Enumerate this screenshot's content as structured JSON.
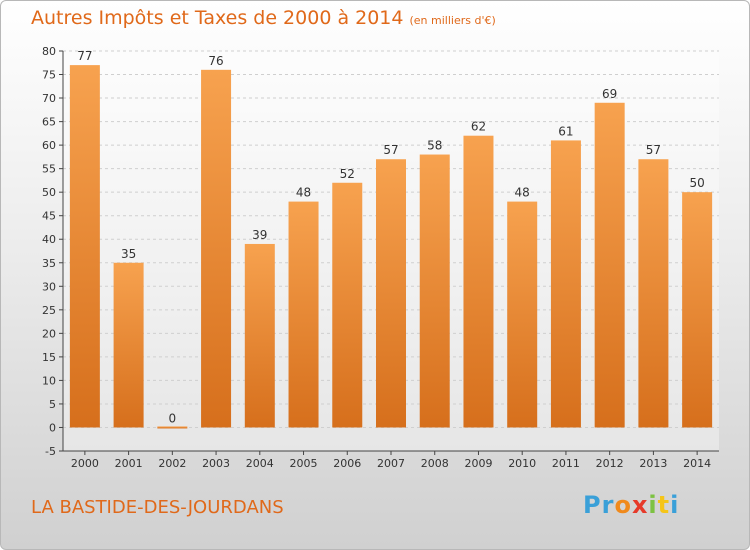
{
  "chart_data": {
    "type": "bar",
    "title": "Autres Impôts et Taxes de 2000 à 2014",
    "unit_label": "(en milliers d'€)",
    "categories": [
      "2000",
      "2001",
      "2002",
      "2003",
      "2004",
      "2005",
      "2006",
      "2007",
      "2008",
      "2009",
      "2010",
      "2011",
      "2012",
      "2013",
      "2014"
    ],
    "values": [
      77,
      35,
      0,
      76,
      39,
      48,
      52,
      57,
      58,
      62,
      48,
      61,
      69,
      57,
      50
    ],
    "ylim": [
      -5,
      80
    ],
    "yticks": [
      -5,
      0,
      5,
      10,
      15,
      20,
      25,
      30,
      35,
      40,
      45,
      50,
      55,
      60,
      65,
      70,
      75,
      80
    ],
    "grid": true,
    "bar_color": "#f0923a"
  },
  "footer": {
    "commune": "LA BASTIDE-DES-JOURDANS",
    "logo_letters": [
      {
        "ch": "P",
        "color": "#3aa0d8"
      },
      {
        "ch": "r",
        "color": "#3aa0d8"
      },
      {
        "ch": "o",
        "color": "#f08a1c"
      },
      {
        "ch": "x",
        "color": "#e63a2a"
      },
      {
        "ch": "i",
        "color": "#7dc242"
      },
      {
        "ch": "t",
        "color": "#f5c518"
      },
      {
        "ch": "i",
        "color": "#3aa0d8"
      }
    ]
  }
}
